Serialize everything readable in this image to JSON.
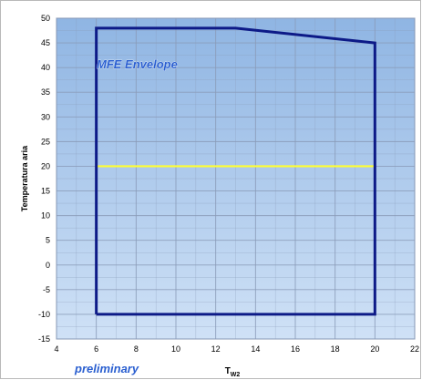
{
  "chart_data": {
    "type": "line",
    "title": "",
    "xlabel": "T",
    "xlabel_sub": "W2",
    "ylabel": "Temperatura aria",
    "xlim": [
      4,
      22
    ],
    "ylim": [
      -15,
      50
    ],
    "xticks": [
      4,
      6,
      8,
      10,
      12,
      14,
      16,
      18,
      20,
      22
    ],
    "yticks": [
      -15,
      -10,
      -5,
      0,
      5,
      10,
      15,
      20,
      25,
      30,
      35,
      40,
      45,
      50
    ],
    "grid": true,
    "legend": "none",
    "series": [
      {
        "color": "#0d1a87",
        "points": [
          [
            6,
            -10
          ],
          [
            6,
            48
          ],
          [
            13,
            48
          ],
          [
            20,
            45
          ],
          [
            20,
            -10
          ],
          [
            6,
            -10
          ]
        ]
      },
      {
        "color": "#ffff33",
        "points": [
          [
            6,
            20
          ],
          [
            20,
            20
          ]
        ]
      }
    ],
    "annotations": [
      "MFE Envelope",
      "preliminary"
    ]
  },
  "colors": {
    "plot_bg_top": "#8fb5e3",
    "plot_bg_bottom": "#cfe1f6",
    "grid": "#8a9bb8",
    "envelope": "#0d1a87",
    "reference": "#ffff33",
    "annotation": "#2a5fd0"
  }
}
